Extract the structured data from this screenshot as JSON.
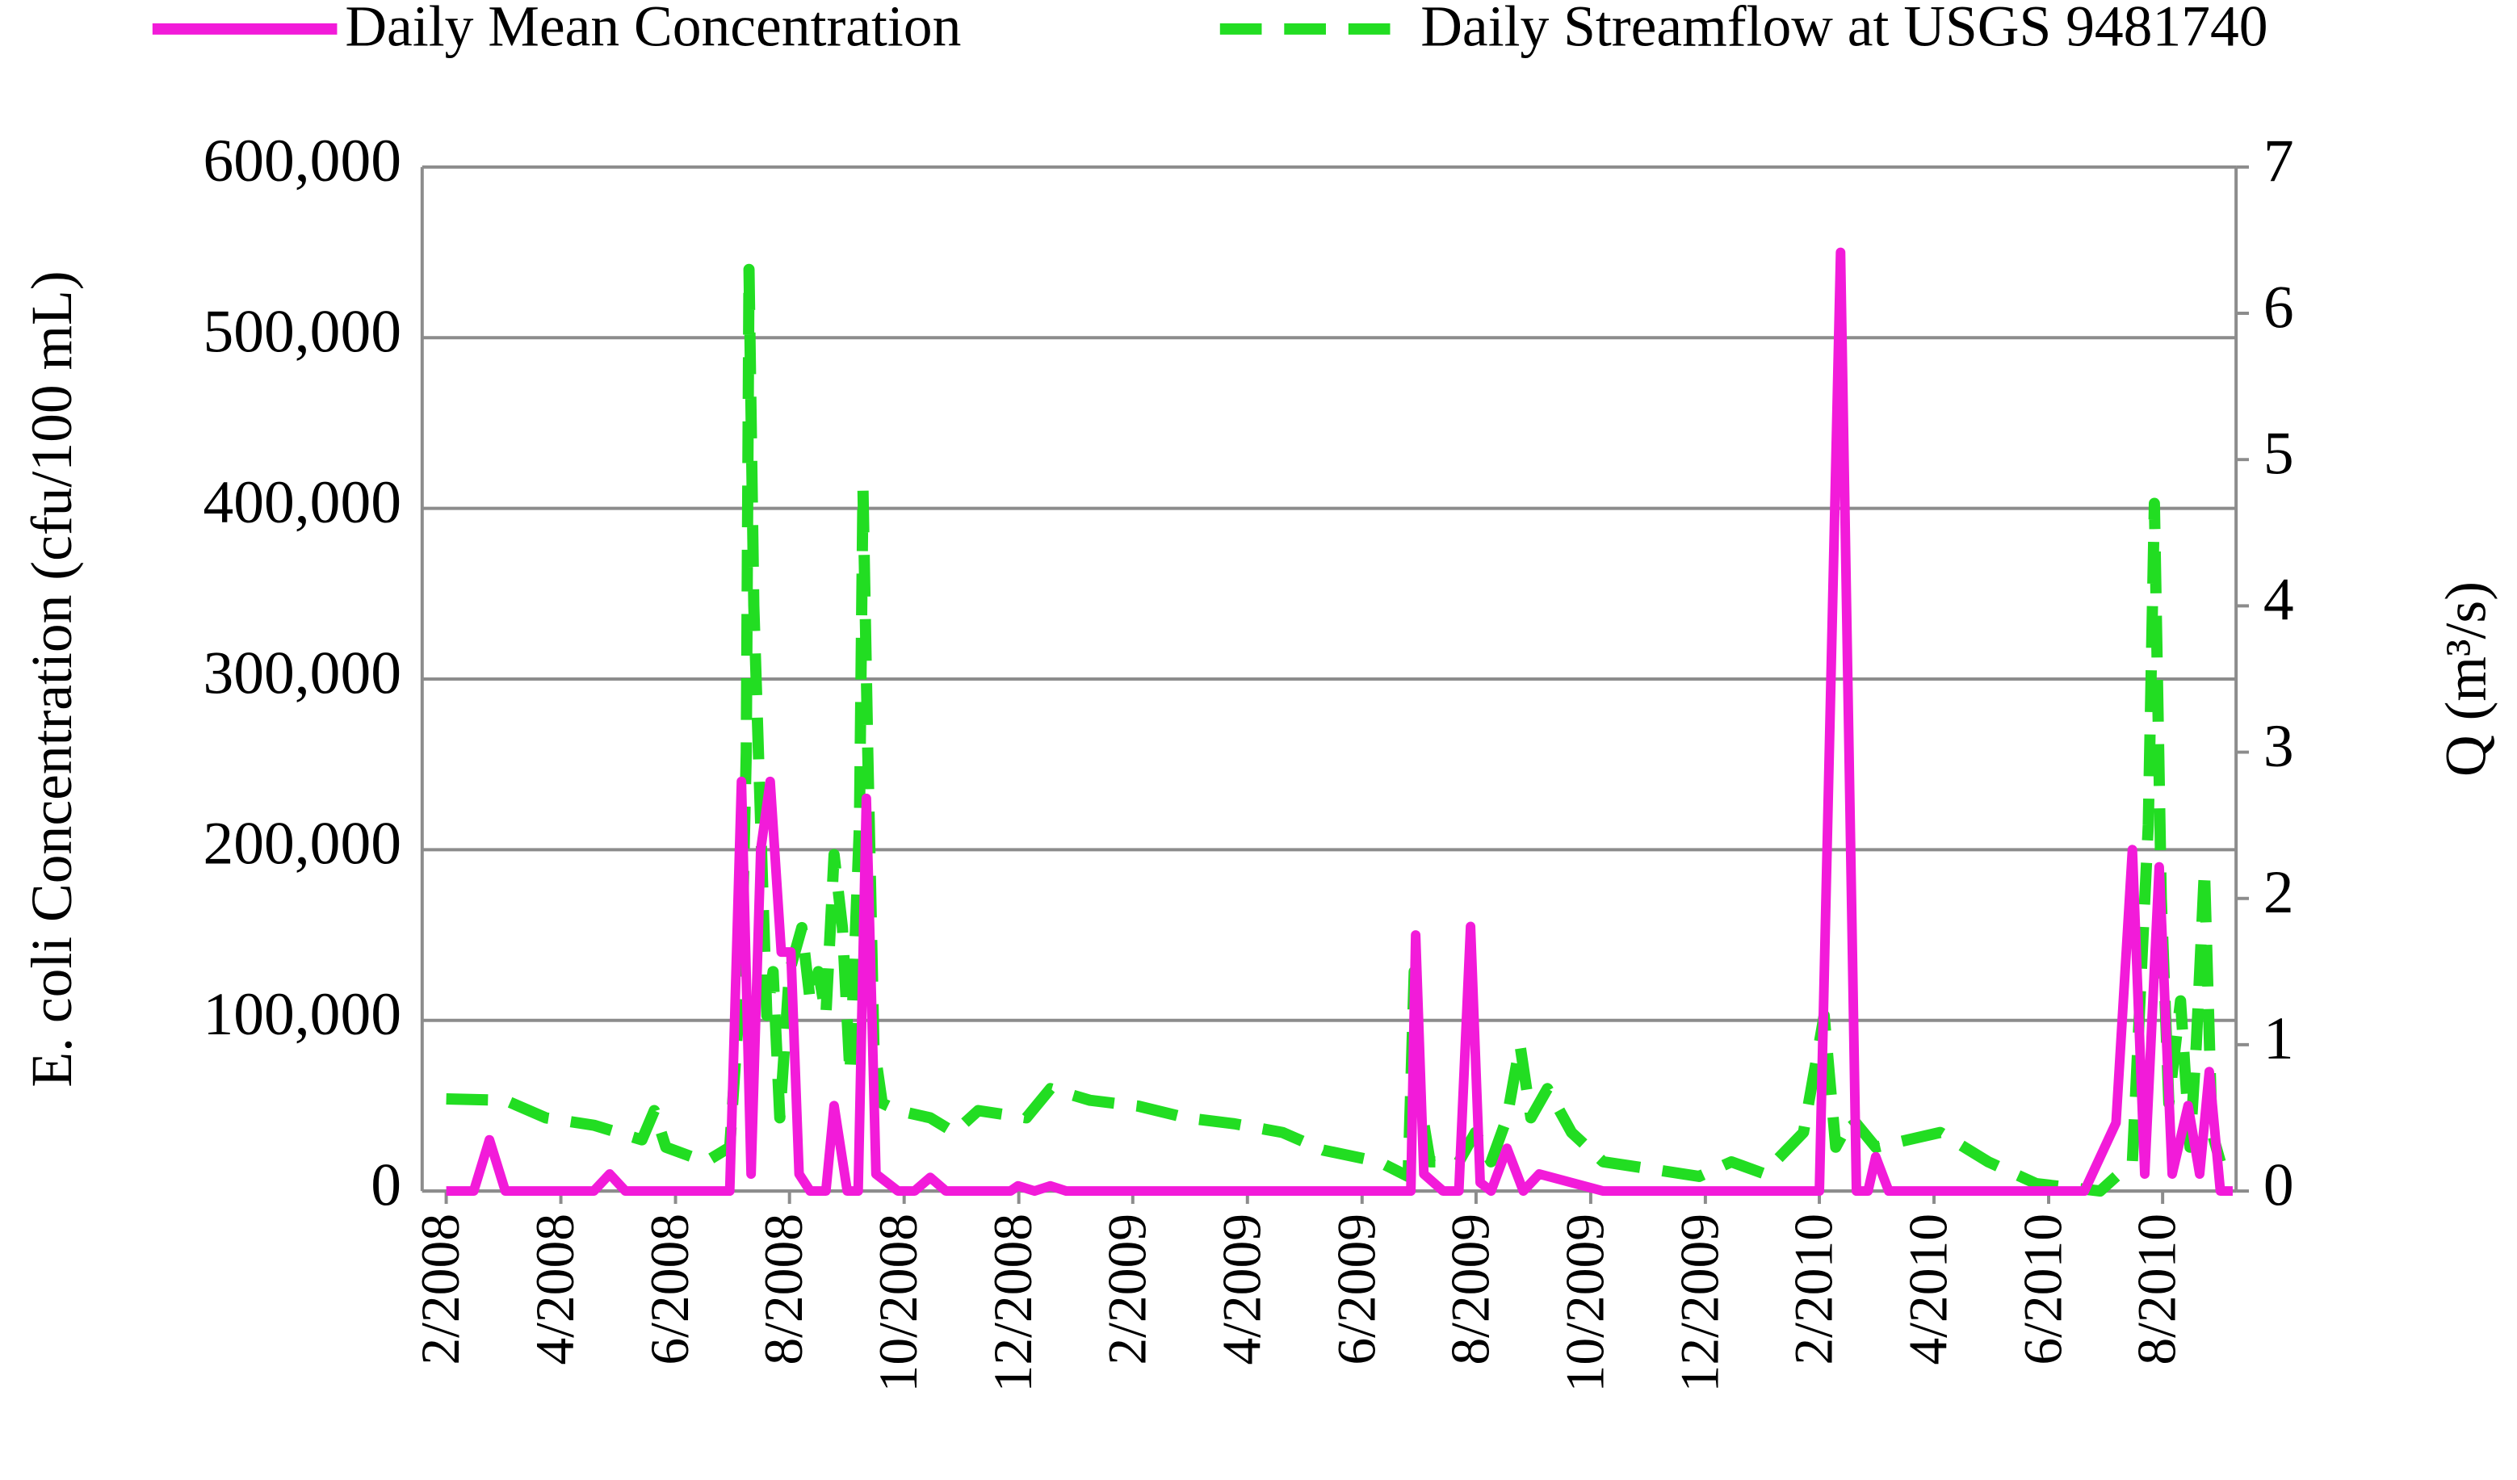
{
  "chart_data": {
    "type": "line",
    "xlim": [
      2008.048,
      2010.69
    ],
    "xticks": [
      {
        "value": 2008.083,
        "label": "2/2008"
      },
      {
        "value": 2008.25,
        "label": "4/2008"
      },
      {
        "value": 2008.417,
        "label": "6/2008"
      },
      {
        "value": 2008.583,
        "label": "8/2008"
      },
      {
        "value": 2008.75,
        "label": "10/2008"
      },
      {
        "value": 2008.917,
        "label": "12/2008"
      },
      {
        "value": 2009.083,
        "label": "2/2009"
      },
      {
        "value": 2009.25,
        "label": "4/2009"
      },
      {
        "value": 2009.417,
        "label": "6/2009"
      },
      {
        "value": 2009.583,
        "label": "8/2009"
      },
      {
        "value": 2009.75,
        "label": "10/2009"
      },
      {
        "value": 2009.917,
        "label": "12/2009"
      },
      {
        "value": 2010.083,
        "label": "2/2010"
      },
      {
        "value": 2010.25,
        "label": "4/2010"
      },
      {
        "value": 2010.417,
        "label": "6/2010"
      },
      {
        "value": 2010.583,
        "label": "8/2010"
      }
    ],
    "ylabel": "E. coli Concentration (cfu/100 mL)",
    "ylim": [
      0,
      600000
    ],
    "yticks": [
      0,
      {
        "value": 100000,
        "label": "100,000"
      },
      {
        "value": 200000,
        "label": "200,000"
      },
      {
        "value": 300000,
        "label": "300,000"
      },
      {
        "value": 400000,
        "label": "400,000"
      },
      {
        "value": 500000,
        "label": "500,000"
      },
      {
        "value": 600000,
        "label": "600,000"
      }
    ],
    "y2label": "Q (m³/s)",
    "y2lim": [
      0,
      7
    ],
    "y2ticks": [
      0,
      1,
      2,
      3,
      4,
      5,
      6,
      7
    ],
    "grid": true,
    "legend": "top",
    "series": [
      {
        "name": "Daily Mean Concentration",
        "color": "#f21bd9",
        "style": "solid",
        "x": [
          2008.083,
          2008.123,
          2008.146,
          2008.169,
          2008.298,
          2008.321,
          2008.344,
          2008.496,
          2008.513,
          2008.527,
          2008.541,
          2008.555,
          2008.571,
          2008.585,
          2008.597,
          2008.613,
          2008.636,
          2008.648,
          2008.667,
          2008.683,
          2008.695,
          2008.709,
          2008.741,
          2008.765,
          2008.788,
          2008.811,
          2008.905,
          2008.916,
          2008.94,
          2008.963,
          2008.986,
          2009.488,
          2009.495,
          2009.507,
          2009.535,
          2009.558,
          2009.575,
          2009.589,
          2009.605,
          2009.628,
          2009.652,
          2009.675,
          2009.768,
          2010.048,
          2010.083,
          2010.114,
          2010.137,
          2010.154,
          2010.165,
          2010.184,
          2010.469,
          2010.515,
          2010.539,
          2010.557,
          2010.578,
          2010.597,
          2010.62,
          2010.637,
          2010.651,
          2010.667,
          2010.685
        ],
        "values": [
          0,
          0,
          30000,
          0,
          0,
          10000,
          0,
          0,
          240000,
          10000,
          200000,
          240000,
          140000,
          140000,
          10000,
          0,
          0,
          50000,
          0,
          0,
          230000,
          10000,
          0,
          0,
          8000,
          0,
          0,
          3000,
          0,
          3000,
          0,
          0,
          150000,
          10000,
          0,
          0,
          155000,
          5000,
          0,
          25000,
          0,
          10000,
          0,
          0,
          0,
          550000,
          0,
          0,
          20000,
          0,
          0,
          40000,
          200000,
          10000,
          190000,
          10000,
          50000,
          10000,
          70000,
          0,
          0
        ]
      },
      {
        "name": "Daily Streamflow at USGS 9481740",
        "color": "#22dd22",
        "style": "dashed",
        "axis": "y2",
        "x": [
          2008.083,
          2008.169,
          2008.228,
          2008.298,
          2008.368,
          2008.386,
          2008.403,
          2008.461,
          2008.496,
          2008.513,
          2008.52,
          2008.524,
          2008.531,
          2008.541,
          2008.55,
          2008.559,
          2008.569,
          2008.583,
          2008.601,
          2008.613,
          2008.625,
          2008.636,
          2008.648,
          2008.66,
          2008.671,
          2008.685,
          2008.69,
          2008.697,
          2008.706,
          2008.718,
          2008.741,
          2008.788,
          2008.823,
          2008.858,
          2008.928,
          2008.963,
          2009.021,
          2009.091,
          2009.161,
          2009.231,
          2009.301,
          2009.36,
          2009.442,
          2009.484,
          2009.493,
          2009.502,
          2009.516,
          2009.558,
          2009.582,
          2009.605,
          2009.628,
          2009.647,
          2009.663,
          2009.687,
          2009.722,
          2009.768,
          2009.838,
          2009.908,
          2009.955,
          2010.002,
          2010.06,
          2010.09,
          2010.107,
          2010.13,
          2010.165,
          2010.259,
          2010.329,
          2010.399,
          2010.492,
          2010.539,
          2010.562,
          2010.571,
          2010.581,
          2010.592,
          2010.609,
          2010.623,
          2010.632,
          2010.644,
          2010.655,
          2010.667
        ],
        "values": [
          0.63,
          0.62,
          0.5,
          0.45,
          0.35,
          0.55,
          0.3,
          0.2,
          0.3,
          1.5,
          3,
          6.3,
          4,
          2.5,
          1.2,
          1.5,
          0.5,
          1.5,
          1.8,
          1.3,
          1.5,
          1.2,
          2.3,
          1.8,
          0.8,
          2.5,
          4.8,
          3,
          1,
          0.6,
          0.55,
          0.5,
          0.4,
          0.55,
          0.5,
          0.7,
          0.62,
          0.58,
          0.5,
          0.46,
          0.4,
          0.28,
          0.2,
          0.1,
          1.5,
          0.6,
          0.2,
          0.2,
          0.4,
          0.2,
          0.5,
          1,
          0.5,
          0.7,
          0.4,
          0.2,
          0.15,
          0.1,
          0.2,
          0.12,
          0.4,
          1.2,
          0.3,
          0.5,
          0.3,
          0.4,
          0.2,
          0.05,
          0,
          0.2,
          2.5,
          4.7,
          2,
          0.6,
          1.3,
          0.3,
          1,
          2.2,
          0.4,
          0.2
        ]
      }
    ]
  }
}
